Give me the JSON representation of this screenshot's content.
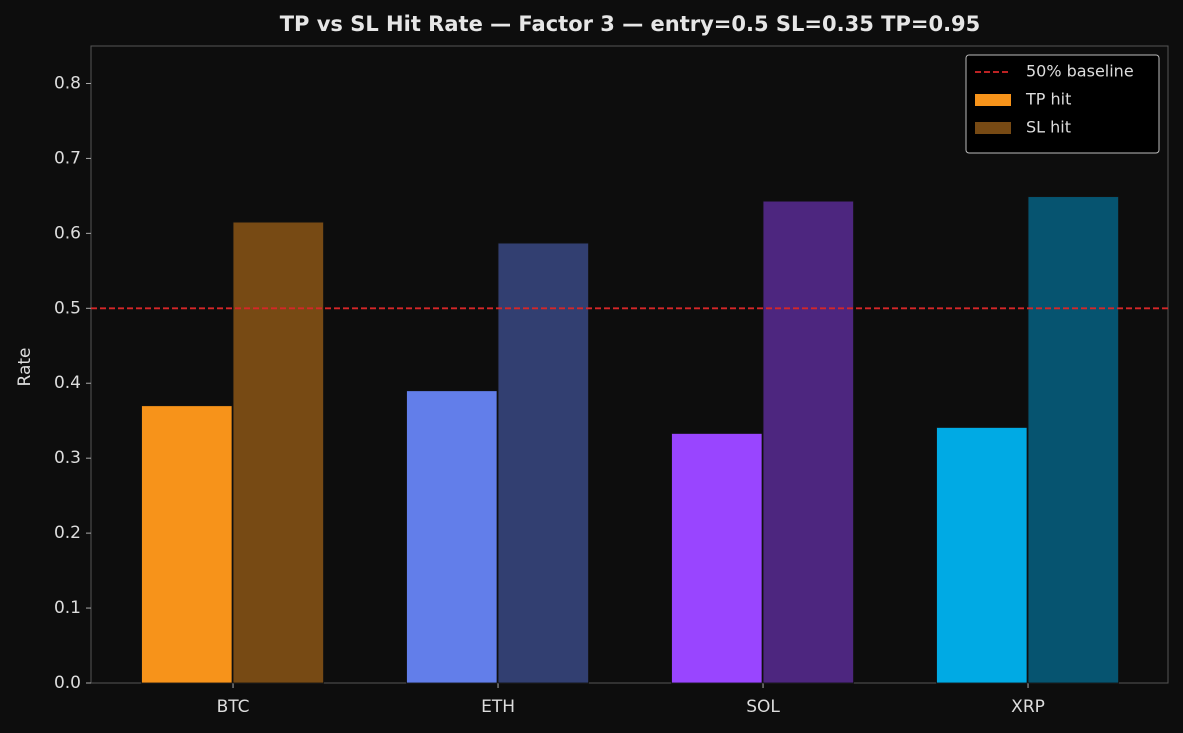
{
  "chart_data": {
    "type": "bar",
    "title": "TP vs SL Hit Rate  —  Factor 3  —  entry=0.5  SL=0.35  TP=0.95",
    "y_label": "Rate",
    "categories": [
      "BTC",
      "ETH",
      "SOL",
      "XRP"
    ],
    "series": [
      {
        "name": "TP hit",
        "colors": [
          "#f7931a",
          "#627eea",
          "#9945ff",
          "#00aae4"
        ],
        "values": [
          0.37,
          0.39,
          0.333,
          0.341
        ]
      },
      {
        "name": "SL hit",
        "colors": [
          "#774a14",
          "#323f71",
          "#4d267f",
          "#065470"
        ],
        "values": [
          0.615,
          0.587,
          0.643,
          0.649
        ]
      }
    ],
    "reference_lines": [
      {
        "name": "50% baseline",
        "value": 0.5,
        "color": "#d62728"
      }
    ],
    "ylim": [
      0,
      0.85
    ],
    "yticks": [
      {
        "value": 0,
        "label": "0.0"
      },
      0.1,
      0.2,
      0.3,
      0.4,
      0.5,
      0.6,
      0.7,
      0.8
    ],
    "legend": "upper right"
  }
}
